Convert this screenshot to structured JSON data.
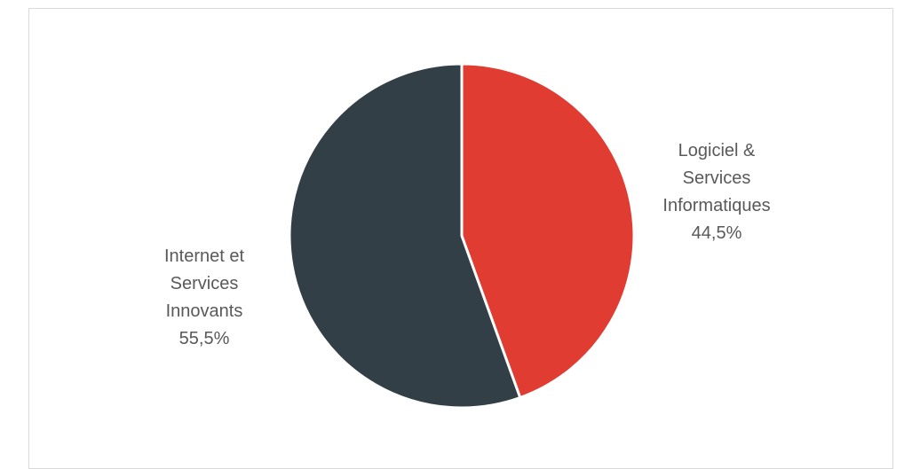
{
  "chart_data": {
    "type": "pie",
    "categories": [
      "Logiciel & Services Informatiques",
      "Internet et Services Innovants"
    ],
    "values": [
      44.5,
      55.5
    ],
    "value_labels": [
      "44,5%",
      "55,5%"
    ],
    "colors": [
      "#e03c31",
      "#333f46"
    ],
    "start_angle_deg": 0,
    "direction": "clockwise",
    "legend": "none"
  },
  "labels": {
    "logiciel": {
      "line1": "Logiciel &",
      "line2": "Services",
      "line3": "Informatiques",
      "value": "44,5%"
    },
    "internet": {
      "line1": "Internet et",
      "line2": "Services",
      "line3": "Innovants",
      "value": "55,5%"
    }
  }
}
